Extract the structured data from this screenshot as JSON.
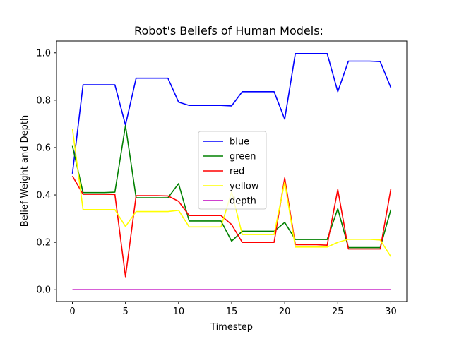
{
  "chart_data": {
    "type": "line",
    "title": "Robot's Beliefs of Human Models:",
    "xlabel": "Timestep",
    "ylabel": "Belief Weight and Depth",
    "xlim": [
      -1.5,
      31.5
    ],
    "ylim": [
      -0.05,
      1.05
    ],
    "xticks": [
      0,
      5,
      10,
      15,
      20,
      25,
      30
    ],
    "yticks": [
      0.0,
      0.2,
      0.4,
      0.6,
      0.8,
      1.0
    ],
    "ytick_labels": [
      "0.0",
      "0.2",
      "0.4",
      "0.6",
      "0.8",
      "1.0"
    ],
    "legend_position": "center",
    "x": [
      0,
      1,
      2,
      3,
      4,
      5,
      6,
      7,
      8,
      9,
      10,
      11,
      12,
      13,
      14,
      15,
      16,
      17,
      18,
      19,
      20,
      21,
      22,
      23,
      24,
      25,
      26,
      27,
      28,
      29,
      30
    ],
    "series": [
      {
        "name": "blue",
        "color": "#0000ff",
        "values": [
          0.49,
          0.865,
          0.865,
          0.865,
          0.865,
          0.695,
          0.893,
          0.893,
          0.893,
          0.893,
          0.792,
          0.778,
          0.778,
          0.778,
          0.778,
          0.776,
          0.836,
          0.836,
          0.836,
          0.836,
          0.72,
          0.997,
          0.997,
          0.997,
          0.997,
          0.836,
          0.965,
          0.965,
          0.965,
          0.963,
          0.853
        ]
      },
      {
        "name": "green",
        "color": "#008000",
        "values": [
          0.607,
          0.41,
          0.41,
          0.41,
          0.412,
          0.693,
          0.388,
          0.388,
          0.388,
          0.388,
          0.448,
          0.29,
          0.29,
          0.29,
          0.29,
          0.205,
          0.247,
          0.247,
          0.247,
          0.247,
          0.284,
          0.212,
          0.212,
          0.212,
          0.212,
          0.342,
          0.178,
          0.178,
          0.178,
          0.178,
          0.338
        ]
      },
      {
        "name": "red",
        "color": "#ff0000",
        "values": [
          0.48,
          0.403,
          0.403,
          0.403,
          0.402,
          0.055,
          0.397,
          0.397,
          0.397,
          0.396,
          0.373,
          0.313,
          0.313,
          0.313,
          0.313,
          0.275,
          0.2,
          0.2,
          0.2,
          0.2,
          0.472,
          0.19,
          0.19,
          0.19,
          0.188,
          0.423,
          0.172,
          0.172,
          0.172,
          0.172,
          0.425
        ]
      },
      {
        "name": "yellow",
        "color": "#ffff00",
        "values": [
          0.68,
          0.338,
          0.338,
          0.338,
          0.338,
          0.267,
          0.33,
          0.33,
          0.33,
          0.33,
          0.335,
          0.265,
          0.265,
          0.265,
          0.265,
          0.413,
          0.233,
          0.233,
          0.233,
          0.233,
          0.455,
          0.18,
          0.18,
          0.18,
          0.18,
          0.2,
          0.213,
          0.213,
          0.213,
          0.21,
          0.14
        ]
      },
      {
        "name": "depth",
        "color": "#bf00bf",
        "values": [
          0,
          0,
          0,
          0,
          0,
          0,
          0,
          0,
          0,
          0,
          0,
          0,
          0,
          0,
          0,
          0,
          0,
          0,
          0,
          0,
          0,
          0,
          0,
          0,
          0,
          0,
          0,
          0,
          0,
          0,
          0
        ]
      }
    ]
  }
}
